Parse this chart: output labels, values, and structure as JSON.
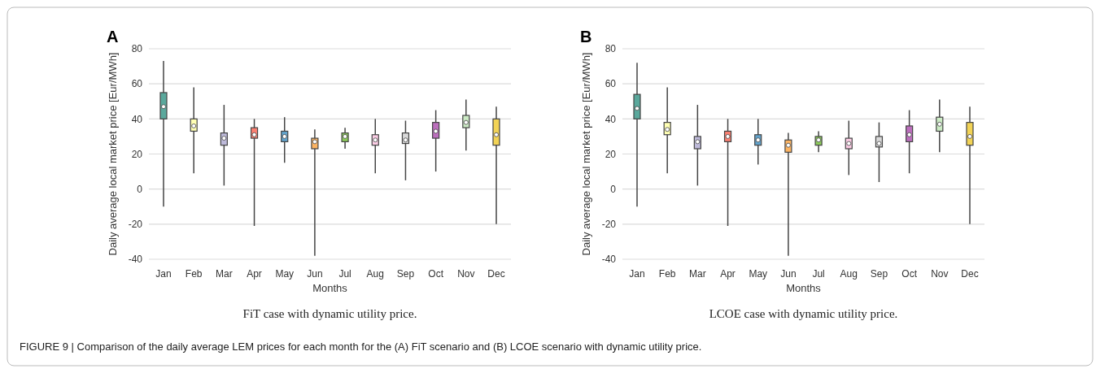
{
  "chart_data": [
    {
      "type": "box",
      "ylabel": "Daily average local market price [Eur/MWh]",
      "xlabel": "Months",
      "annotations": [
        "A",
        "FiT case with dynamic utility price.",
        "FIGURE 9 | Comparison of the daily average LEM prices for each month for the (A) FiT scenario and (B) LCOE scenario with dynamic utility price."
      ],
      "categories": [
        "Jan",
        "Feb",
        "Mar",
        "Apr",
        "May",
        "Jun",
        "Jul",
        "Aug",
        "Sep",
        "Oct",
        "Nov",
        "Dec"
      ],
      "colors": [
        "#5aa89c",
        "#ffffb3",
        "#bebada",
        "#fb8072",
        "#62a3cc",
        "#fdb462",
        "#8ccb5a",
        "#fccde5",
        "#d9d9d9",
        "#bc6fbd",
        "#ccebc5",
        "#f2d356"
      ],
      "boxes": [
        {
          "low": -10,
          "q1": 40,
          "median": 47,
          "q3": 55,
          "high": 73
        },
        {
          "low": 9,
          "q1": 33,
          "median": 36,
          "q3": 40,
          "high": 58
        },
        {
          "low": 2,
          "q1": 25,
          "median": 29,
          "q3": 32,
          "high": 48
        },
        {
          "low": -21,
          "q1": 29,
          "median": 31,
          "q3": 35,
          "high": 40
        },
        {
          "low": 15,
          "q1": 27,
          "median": 30,
          "q3": 33,
          "high": 41
        },
        {
          "low": -38,
          "q1": 23,
          "median": 27,
          "q3": 29,
          "high": 34
        },
        {
          "low": 23,
          "q1": 27,
          "median": 30,
          "q3": 32,
          "high": 35
        },
        {
          "low": 9,
          "q1": 25,
          "median": 28,
          "q3": 31,
          "high": 40
        },
        {
          "low": 5,
          "q1": 26,
          "median": 28,
          "q3": 32,
          "high": 39
        },
        {
          "low": 10,
          "q1": 29,
          "median": 33,
          "q3": 38,
          "high": 45
        },
        {
          "low": 22,
          "q1": 35,
          "median": 38,
          "q3": 42,
          "high": 51
        },
        {
          "low": -20,
          "q1": 25,
          "median": 31,
          "q3": 40,
          "high": 47
        }
      ],
      "ylim": [
        -40,
        80
      ],
      "yticks": [
        -40,
        -20,
        0,
        20,
        40,
        60,
        80
      ],
      "grid": "y"
    },
    {
      "type": "box",
      "ylabel": "Daily average local market price [Eur/MWh]",
      "xlabel": "Months",
      "annotations": [
        "B",
        "LCOE case with dynamic utility price."
      ],
      "categories": [
        "Jan",
        "Feb",
        "Mar",
        "Apr",
        "May",
        "Jun",
        "Jul",
        "Aug",
        "Sep",
        "Oct",
        "Nov",
        "Dec"
      ],
      "colors": [
        "#5aa89c",
        "#ffffb3",
        "#bebada",
        "#fb8072",
        "#62a3cc",
        "#fdb462",
        "#8ccb5a",
        "#fccde5",
        "#d9d9d9",
        "#bc6fbd",
        "#ccebc5",
        "#f2d356"
      ],
      "boxes": [
        {
          "low": -10,
          "q1": 40,
          "median": 46,
          "q3": 54,
          "high": 72
        },
        {
          "low": 9,
          "q1": 31,
          "median": 34,
          "q3": 38,
          "high": 58
        },
        {
          "low": 2,
          "q1": 23,
          "median": 27,
          "q3": 30,
          "high": 48
        },
        {
          "low": -21,
          "q1": 27,
          "median": 30,
          "q3": 33,
          "high": 40
        },
        {
          "low": 14,
          "q1": 25,
          "median": 28,
          "q3": 31,
          "high": 40
        },
        {
          "low": -38,
          "q1": 21,
          "median": 25,
          "q3": 28,
          "high": 32
        },
        {
          "low": 21,
          "q1": 25,
          "median": 28,
          "q3": 30,
          "high": 33
        },
        {
          "low": 8,
          "q1": 23,
          "median": 26,
          "q3": 29,
          "high": 39
        },
        {
          "low": 4,
          "q1": 24,
          "median": 26,
          "q3": 30,
          "high": 38
        },
        {
          "low": 9,
          "q1": 27,
          "median": 31,
          "q3": 36,
          "high": 45
        },
        {
          "low": 21,
          "q1": 33,
          "median": 37,
          "q3": 41,
          "high": 51
        },
        {
          "low": -20,
          "q1": 25,
          "median": 30,
          "q3": 38,
          "high": 47
        }
      ],
      "ylim": [
        -40,
        80
      ],
      "yticks": [
        -40,
        -20,
        0,
        20,
        40,
        60,
        80
      ],
      "grid": "y"
    }
  ]
}
